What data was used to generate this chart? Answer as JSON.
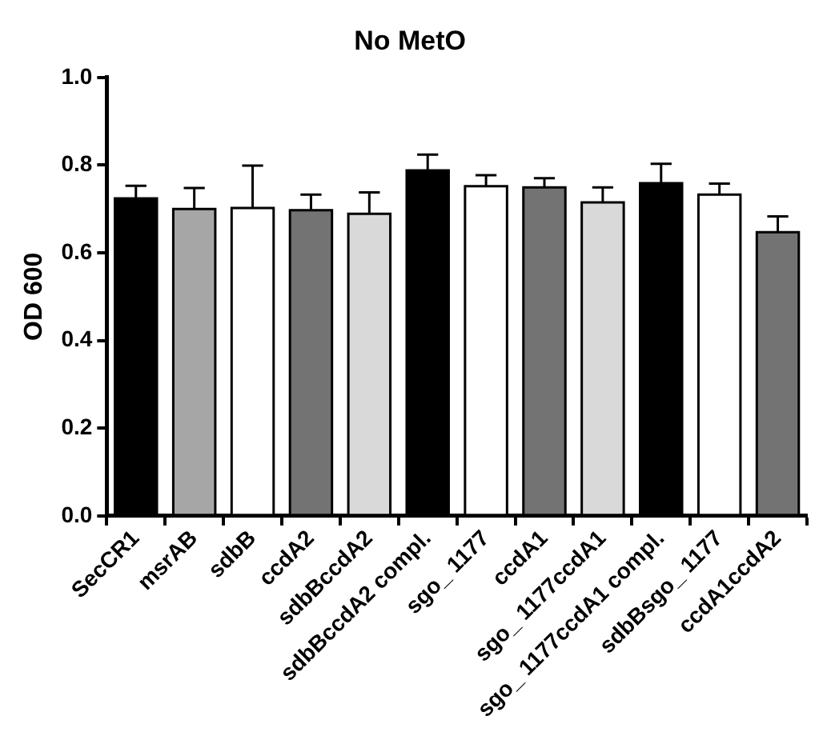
{
  "chart_data": {
    "type": "bar",
    "title": "No MetO",
    "ylabel": "OD 600",
    "categories": [
      "SecCR1",
      "msrAB",
      "sdbB",
      "ccdA2",
      "sdbBccdA2",
      "sdbBccdA2 compl.",
      "sgo_ 1177",
      "ccdA1",
      "sgo_ 1177ccdA1",
      "sgo_ 1177ccdA1 compl.",
      "sdbBsgo_ 1177",
      "ccdA1ccdA2"
    ],
    "values": [
      0.724,
      0.7,
      0.702,
      0.697,
      0.689,
      0.788,
      0.752,
      0.749,
      0.715,
      0.759,
      0.733,
      0.647
    ],
    "errors": [
      0.029,
      0.048,
      0.097,
      0.036,
      0.049,
      0.036,
      0.025,
      0.021,
      0.034,
      0.044,
      0.025,
      0.036
    ],
    "colors": [
      "#000000",
      "#a6a6a6",
      "#ffffff",
      "#737373",
      "#d9d9d9",
      "#000000",
      "#ffffff",
      "#737373",
      "#d9d9d9",
      "#000000",
      "#ffffff",
      "#737373"
    ],
    "ylim": [
      0,
      1.0
    ],
    "yticks": [
      {
        "value": 0,
        "label": "0.0"
      },
      {
        "value": 0.2,
        "label": "0.2"
      },
      {
        "value": 0.4,
        "label": "0.4"
      },
      {
        "value": 0.6,
        "label": "0.6"
      },
      {
        "value": 0.8,
        "label": "0.8"
      },
      {
        "value": 1.0,
        "label": "1.0"
      }
    ],
    "grid": false,
    "legend": false
  }
}
